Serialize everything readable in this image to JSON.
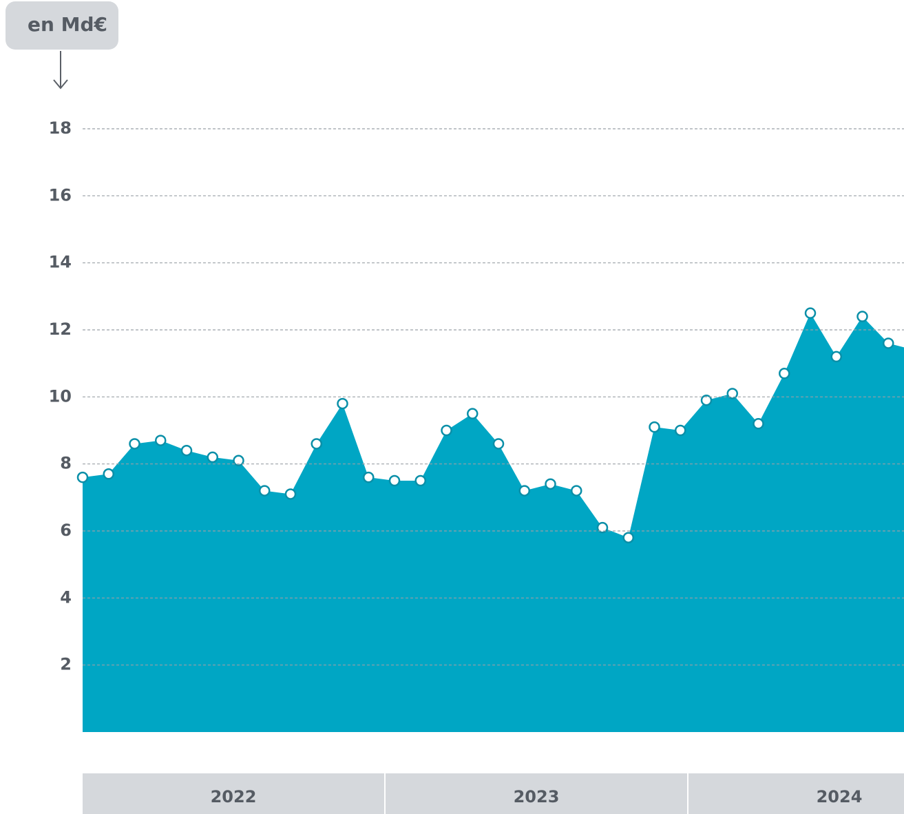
{
  "chart_data": {
    "type": "area",
    "unit_label": "en Md€",
    "categories": [
      null,
      null,
      null,
      null,
      null,
      null,
      null,
      null,
      null,
      null,
      null,
      null,
      null,
      null,
      null,
      null,
      null,
      null,
      null,
      null,
      null,
      null,
      null,
      null,
      null,
      null,
      null,
      null,
      null,
      null,
      null,
      null,
      null
    ],
    "groups": [
      "2022",
      "2023",
      "2024"
    ],
    "values": [
      7.6,
      7.7,
      8.6,
      8.7,
      8.4,
      8.2,
      8.1,
      7.2,
      7.1,
      8.6,
      9.8,
      7.6,
      7.5,
      7.5,
      9.0,
      9.5,
      8.6,
      7.2,
      7.4,
      7.2,
      6.1,
      5.8,
      9.1,
      9.0,
      9.9,
      10.1,
      9.2,
      10.7,
      12.5,
      11.2,
      12.4,
      11.6,
      11.4
    ],
    "color": "#00a6c4",
    "ylim": [
      0,
      18
    ],
    "yticks": [
      2,
      4,
      6,
      8,
      10,
      12,
      14,
      16,
      18
    ],
    "grid": true
  }
}
